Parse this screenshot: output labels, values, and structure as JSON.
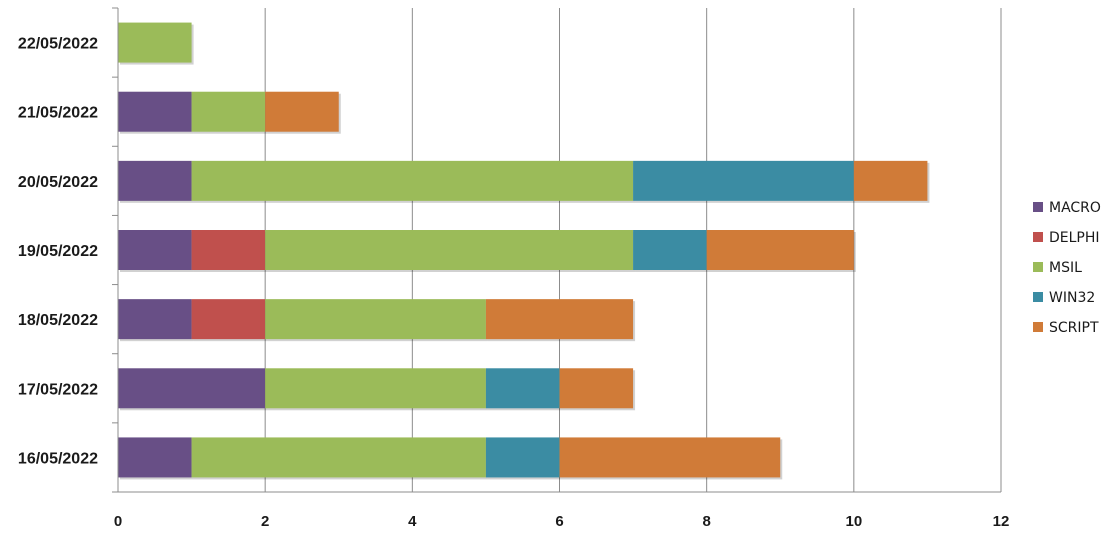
{
  "chart_data": {
    "type": "bar",
    "orientation": "horizontal",
    "stacked": true,
    "title": "",
    "xlabel": "",
    "ylabel": "",
    "xlim": [
      0,
      12
    ],
    "x_ticks": [
      "0",
      "2",
      "4",
      "6",
      "8",
      "10",
      "12"
    ],
    "grid": "vertical",
    "legend": "right",
    "categories": [
      "16/05/2022",
      "17/05/2022",
      "18/05/2022",
      "19/05/2022",
      "20/05/2022",
      "21/05/2022",
      "22/05/2022"
    ],
    "series": [
      {
        "name": "MACRO",
        "color": "#684f86",
        "values": [
          1,
          2,
          1,
          1,
          1,
          1,
          0
        ]
      },
      {
        "name": "DELPHI",
        "color": "#c0504d",
        "values": [
          0,
          0,
          1,
          1,
          0,
          0,
          0
        ]
      },
      {
        "name": "MSIL",
        "color": "#9bbb59",
        "values": [
          4,
          3,
          3,
          5,
          6,
          1,
          1
        ]
      },
      {
        "name": "WIN32",
        "color": "#3b8ca3",
        "values": [
          1,
          1,
          0,
          1,
          3,
          0,
          0
        ]
      },
      {
        "name": "SCRIPT",
        "color": "#d07b38",
        "values": [
          3,
          1,
          2,
          2,
          1,
          1,
          0
        ]
      }
    ]
  }
}
